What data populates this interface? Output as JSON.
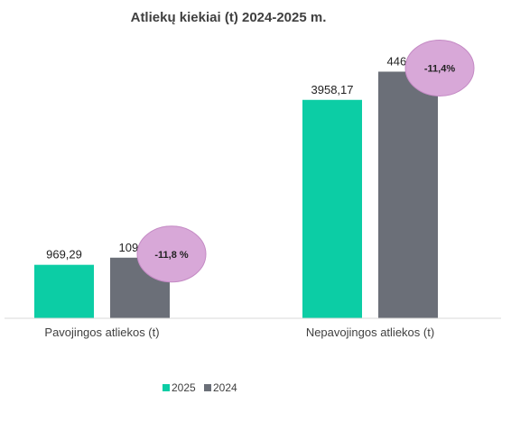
{
  "chart_data": {
    "type": "bar",
    "title": "Atliekų kiekiai (t) 2024-2025 m.",
    "categories": [
      "Pavojingos atliekos (t)",
      "Nepavojingos atliekos (t)"
    ],
    "series": [
      {
        "name": "2025",
        "values": [
          969.29,
          3958.17
        ],
        "labels": [
          "969,29",
          "3958,17"
        ],
        "color": "#0ccda5"
      },
      {
        "name": "2024",
        "values": [
          1098.54,
          4469.36
        ],
        "labels": [
          "1098,54",
          "4469,36"
        ],
        "color": "#6b6f78"
      }
    ],
    "changes": [
      "-11,8 %",
      "-11,4%"
    ],
    "change_bubble_color": "#d8a8d8",
    "ylim": [
      0,
      5000
    ],
    "grid": false,
    "legend_position": "bottom-center"
  }
}
